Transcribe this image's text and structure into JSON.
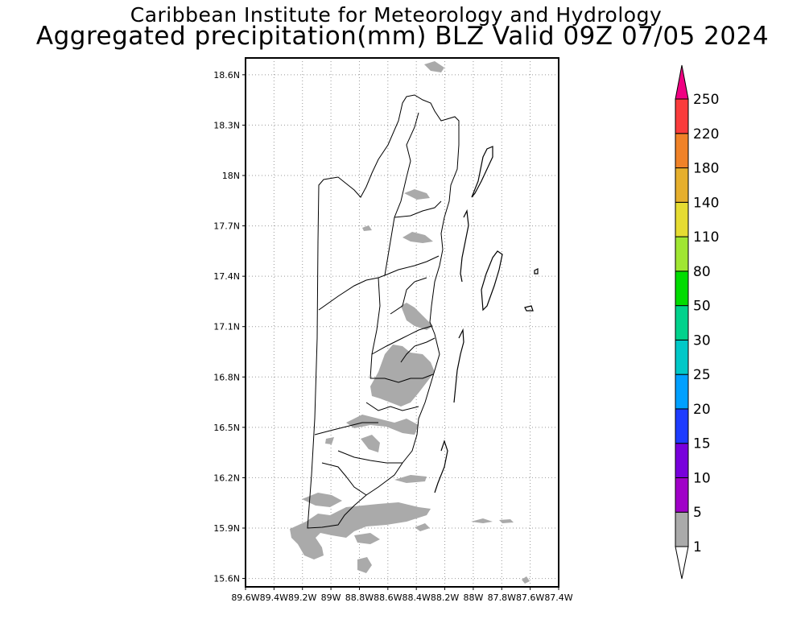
{
  "header": {
    "institute": "Caribbean Institute for Meteorology and Hydrology",
    "product": "Aggregated precipitation(mm) BLZ Valid 09Z 07/05 2024"
  },
  "map": {
    "lat_labels": [
      "18.6N",
      "18.3N",
      "18N",
      "17.7N",
      "17.4N",
      "17.1N",
      "16.8N",
      "16.5N",
      "16.2N",
      "15.9N",
      "15.6N"
    ],
    "lon_labels": [
      "89.6W",
      "89.4W",
      "89.2W",
      "89W",
      "88.8W",
      "88.6W",
      "88.4W",
      "88.2W",
      "88W",
      "87.8W",
      "87.6W",
      "87.4W"
    ],
    "lon_range": [
      -89.6,
      -87.4
    ],
    "lat_range": [
      15.55,
      18.7
    ],
    "grid": "dotted",
    "precip_color": "#aaaaaa"
  },
  "colorbar": {
    "levels": [
      "1",
      "5",
      "10",
      "15",
      "20",
      "25",
      "30",
      "50",
      "80",
      "110",
      "140",
      "180",
      "220",
      "250"
    ],
    "colors": [
      "#aaaaaa",
      "#a000c8",
      "#7800dc",
      "#1e3cff",
      "#00a0ff",
      "#00c8c8",
      "#00d28c",
      "#00dc00",
      "#a0e632",
      "#e6dc32",
      "#e6af2d",
      "#f08228",
      "#fa3c3c",
      "#f00082"
    ]
  }
}
